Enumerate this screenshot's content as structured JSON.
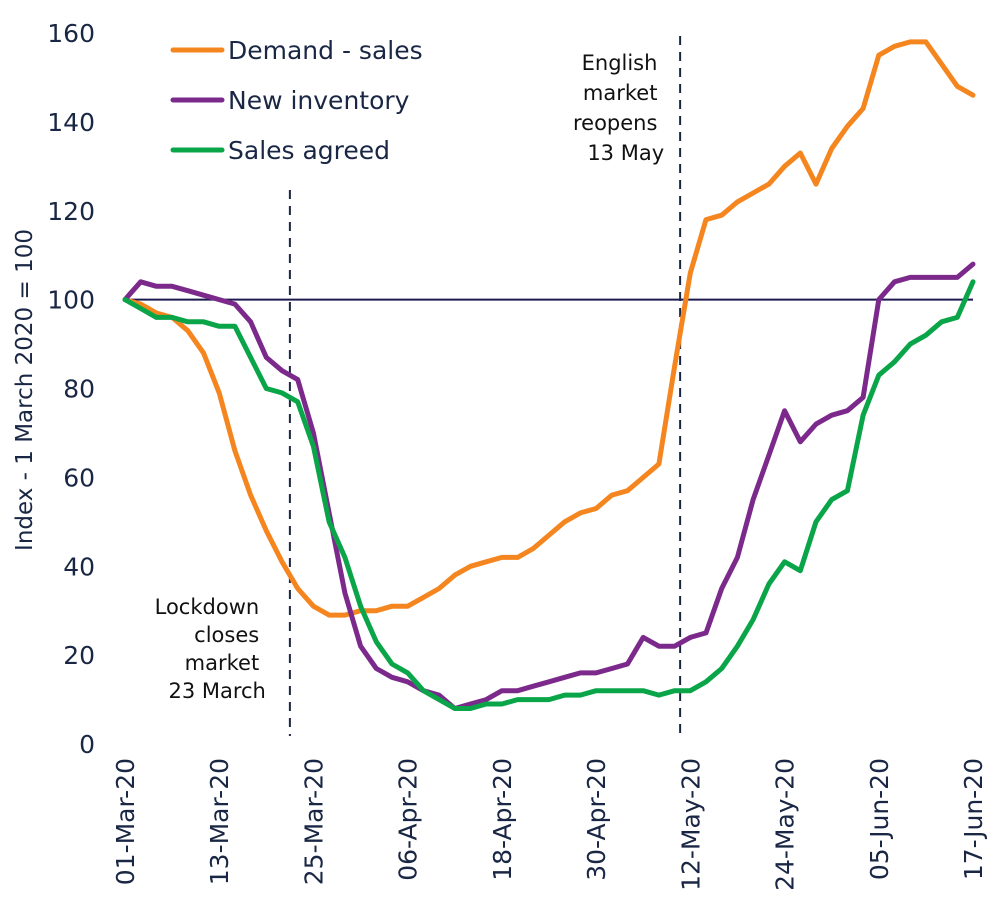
{
  "chart_data": {
    "type": "line",
    "title": "",
    "xlabel": "",
    "ylabel": "Index - 1 March 2020 = 100",
    "ylim": [
      0,
      160
    ],
    "yticks": [
      0,
      20,
      40,
      60,
      80,
      100,
      120,
      140,
      160
    ],
    "x_start": "01-Mar-20",
    "x_day_range": [
      0,
      108
    ],
    "xtick_labels": [
      "01-Mar-20",
      "13-Mar-20",
      "25-Mar-20",
      "06-Apr-20",
      "18-Apr-20",
      "30-Apr-20",
      "12-May-20",
      "24-May-20",
      "05-Jun-20",
      "17-Jun-20"
    ],
    "xtick_days": [
      0,
      12,
      24,
      36,
      48,
      60,
      72,
      84,
      96,
      108
    ],
    "grid": false,
    "legend_position": "top-left",
    "reference_line": {
      "value": 100,
      "color": "#1c1a4f"
    },
    "x_days": [
      0,
      2,
      4,
      6,
      8,
      10,
      12,
      14,
      16,
      18,
      20,
      22,
      24,
      26,
      28,
      30,
      32,
      34,
      36,
      38,
      40,
      42,
      44,
      46,
      48,
      50,
      52,
      54,
      56,
      58,
      60,
      62,
      64,
      66,
      68,
      70,
      72,
      74,
      76,
      78,
      80,
      82,
      84,
      86,
      88,
      90,
      92,
      94,
      96,
      98,
      100,
      102,
      104,
      106,
      108
    ],
    "series": [
      {
        "name": "Demand - sales",
        "color": "#f5861f",
        "values": [
          100,
          99,
          97,
          96,
          93,
          88,
          79,
          66,
          56,
          48,
          41,
          35,
          31,
          29,
          29,
          30,
          30,
          31,
          31,
          33,
          35,
          38,
          40,
          41,
          42,
          42,
          44,
          47,
          50,
          52,
          53,
          56,
          57,
          60,
          63,
          85,
          106,
          118,
          119,
          122,
          124,
          126,
          130,
          133,
          126,
          134,
          139,
          143,
          155,
          157,
          158,
          158,
          153,
          148,
          146
        ]
      },
      {
        "name": "New inventory",
        "color": "#7b2a8c",
        "values": [
          100,
          104,
          103,
          103,
          102,
          101,
          100,
          99,
          95,
          87,
          84,
          82,
          70,
          52,
          34,
          22,
          17,
          15,
          14,
          12,
          11,
          8,
          9,
          10,
          12,
          12,
          13,
          14,
          15,
          16,
          16,
          17,
          18,
          24,
          22,
          22,
          24,
          25,
          35,
          42,
          55,
          65,
          75,
          68,
          72,
          74,
          75,
          78,
          100,
          104,
          105,
          105,
          105,
          105,
          108
        ]
      },
      {
        "name": "Sales agreed",
        "color": "#0aa548",
        "values": [
          100,
          98,
          96,
          96,
          95,
          95,
          94,
          94,
          87,
          80,
          79,
          77,
          67,
          50,
          42,
          31,
          23,
          18,
          16,
          12,
          10,
          8,
          8,
          9,
          9,
          10,
          10,
          10,
          11,
          11,
          12,
          12,
          12,
          12,
          11,
          12,
          12,
          14,
          17,
          22,
          28,
          36,
          41,
          39,
          50,
          55,
          57,
          74,
          83,
          86,
          90,
          92,
          95,
          96,
          104
        ]
      }
    ],
    "annotations": [
      {
        "day": 21,
        "lines": [
          "Lockdown",
          "closes",
          "market",
          "23 March"
        ],
        "position": "left-bottom"
      },
      {
        "day": 70.7,
        "lines": [
          "English",
          "market",
          "reopens",
          "13 May"
        ],
        "position": "left-top"
      }
    ]
  }
}
